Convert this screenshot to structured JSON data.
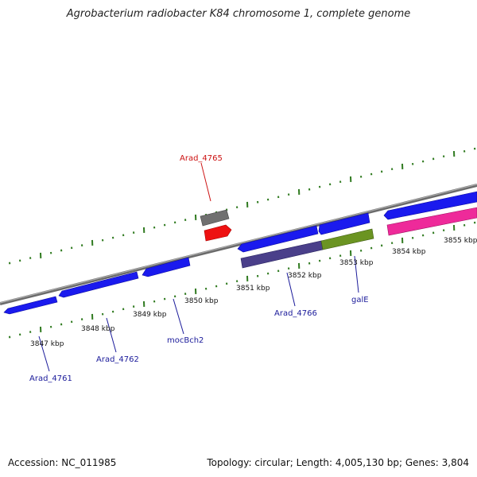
{
  "title": "Agrobacterium radiobacter K84 chromosome 1, complete genome",
  "footer": {
    "accession": "Accession: NC_011985",
    "summary": "Topology: circular; Length: 4,005,130 bp; Genes: 3,804"
  },
  "colors": {
    "gene_blue": "#1a1aee",
    "gene_red": "#ee1111",
    "gene_gray": "#707070",
    "cds_purple": "#4a3f8a",
    "cds_green": "#6b9422",
    "cds_pink": "#ee2a9a",
    "tick_green": "#2f7a1f",
    "label_blue": "#1a1a9a",
    "label_red": "#cc1111",
    "backbone": "#888888"
  },
  "ticks": [
    "3847 kbp",
    "3848 kbp",
    "3849 kbp",
    "3850 kbp",
    "3851 kbp",
    "3852 kbp",
    "3853 kbp",
    "3854 kbp",
    "3855 kbp"
  ],
  "gene_labels": [
    "Arad_4761",
    "Arad_4762",
    "mocBch2",
    "Arad_4765",
    "Arad_4766",
    "galE"
  ]
}
